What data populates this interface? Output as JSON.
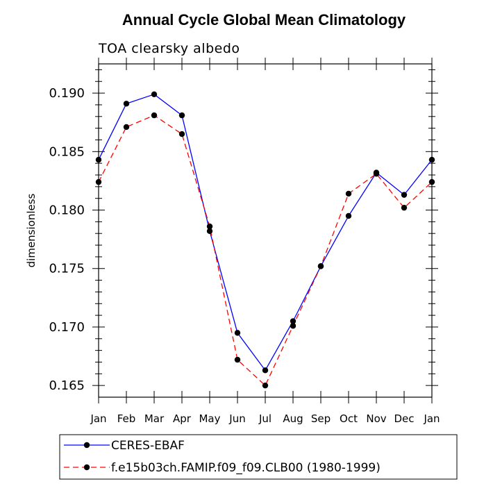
{
  "chart_data": {
    "type": "line",
    "title": "Annual Cycle Global Mean Climatology",
    "subtitle": "TOA clearsky albedo",
    "xlabel": "",
    "ylabel": "dimensionless",
    "categories": [
      "Jan",
      "Feb",
      "Mar",
      "Apr",
      "May",
      "Jun",
      "Jul",
      "Aug",
      "Sep",
      "Oct",
      "Nov",
      "Dec",
      "Jan"
    ],
    "ylim": [
      0.164,
      0.1925
    ],
    "yticks": [
      0.165,
      0.17,
      0.175,
      0.18,
      0.185,
      0.19
    ],
    "ytick_labels": [
      "0.165",
      "0.170",
      "0.175",
      "0.180",
      "0.185",
      "0.190"
    ],
    "grid": false,
    "legend_position": "bottom",
    "series": [
      {
        "name": "CERES-EBAF",
        "color": "#0000ff",
        "style": "solid",
        "values": [
          0.1843,
          0.1891,
          0.1899,
          0.1881,
          0.1782,
          0.1695,
          0.1663,
          0.1705,
          0.1752,
          0.1795,
          0.1832,
          0.1813,
          0.1843
        ]
      },
      {
        "name": "f.e15b03ch.FAMIP.f09_f09.CLB00 (1980-1999)",
        "color": "#ff0000",
        "style": "dashed",
        "values": [
          0.1824,
          0.1871,
          0.1881,
          0.1865,
          0.1786,
          0.1672,
          0.165,
          0.1701,
          0.1752,
          0.1814,
          0.1831,
          0.1802,
          0.1824
        ]
      }
    ]
  }
}
